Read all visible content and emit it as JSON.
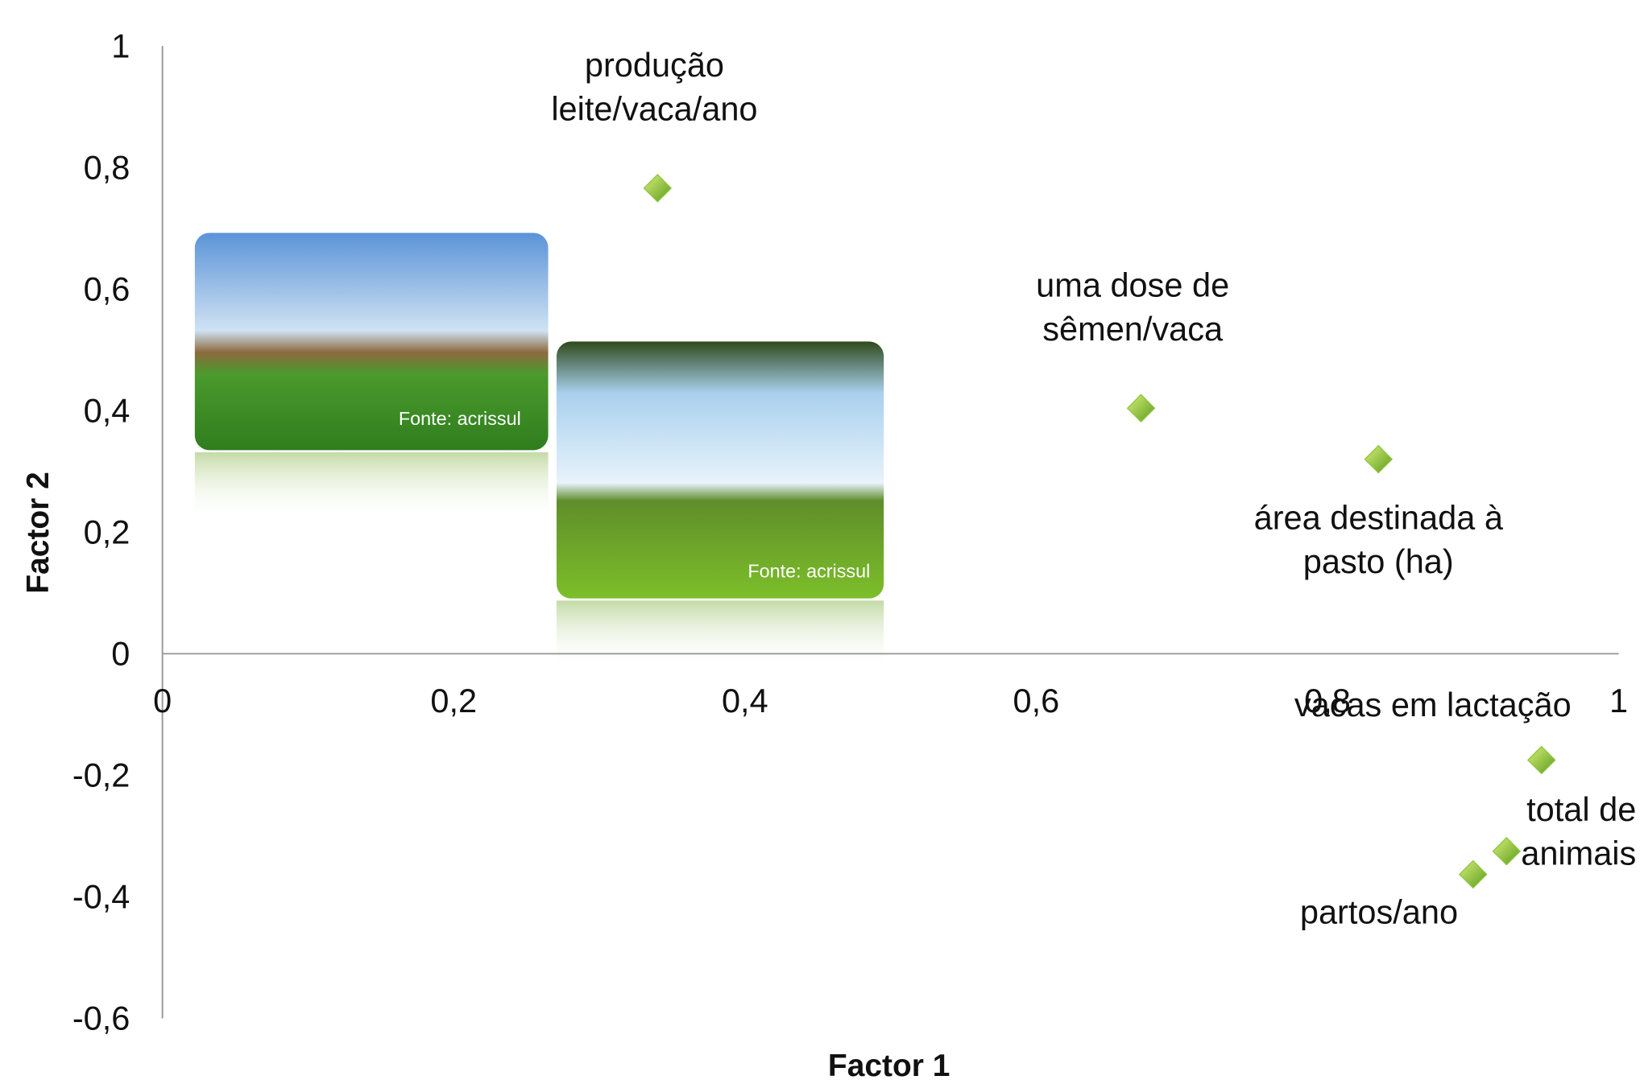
{
  "chart_data": {
    "type": "scatter",
    "xlabel": "Factor 1",
    "ylabel": "Factor 2",
    "xlim": [
      0,
      1
    ],
    "ylim": [
      -0.6,
      1
    ],
    "xticks": [
      0,
      {
        "value": 0.2,
        "label": "0,2"
      },
      {
        "value": 0.4,
        "label": "0,4"
      },
      {
        "value": 0.6,
        "label": "0,6"
      },
      {
        "value": 0.8,
        "label": "0,8"
      },
      1
    ],
    "yticks": [
      {
        "value": -0.6,
        "label": "-0,6"
      },
      {
        "value": -0.4,
        "label": "-0,4"
      },
      {
        "value": -0.2,
        "label": "-0,2"
      },
      0,
      {
        "value": 0.2,
        "label": "0,2"
      },
      {
        "value": 0.4,
        "label": "0,4"
      },
      {
        "value": 0.6,
        "label": "0,6"
      },
      {
        "value": 0.8,
        "label": "0,8"
      },
      1
    ],
    "color": "#8cc63f",
    "x": [
      0.34,
      0.672,
      0.835,
      0.947,
      0.923,
      0.9
    ],
    "values": [
      0.766,
      0.404,
      0.32,
      -0.175,
      -0.325,
      -0.363
    ],
    "point_labels": [
      [
        "produção",
        "leite/vaca/ano"
      ],
      [
        "uma dose de",
        "sêmen/vaca"
      ],
      [
        "área destinada à",
        "pasto (ha)"
      ],
      [
        "vacas em lactação"
      ],
      [
        "total de",
        "animais"
      ],
      [
        "partos/ano"
      ]
    ]
  },
  "images": [
    {
      "caption": "Fonte: acrissul"
    },
    {
      "caption": "Fonte: acrissul"
    }
  ]
}
